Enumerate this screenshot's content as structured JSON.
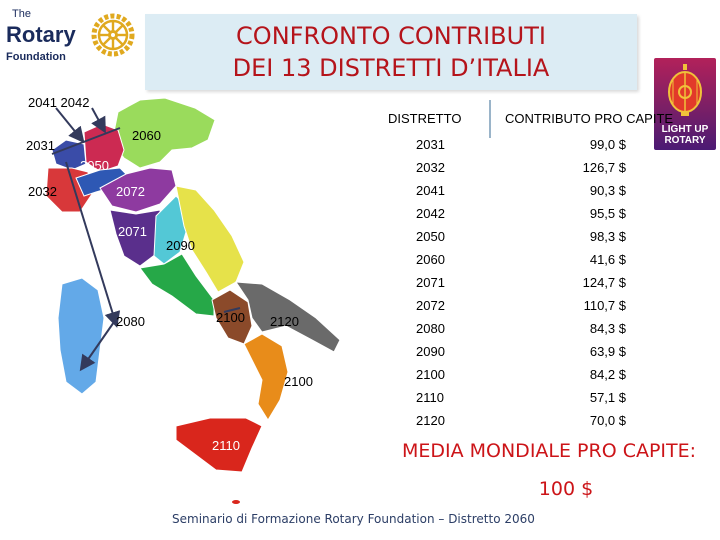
{
  "logo": {
    "the": "The",
    "rotary": "Rotary",
    "foundation": "Foundation"
  },
  "title": {
    "line1": "CONFRONTO CONTRIBUTI",
    "line2": "DEI 13 DISTRETTI D’ITALIA"
  },
  "light_up": {
    "line1": "LIGHT UP",
    "line2": "ROTARY"
  },
  "map": {
    "labels": {
      "d2041_2042": "2041  2042",
      "d2031": "2031",
      "d2060": "2060",
      "d2050": "2050",
      "d2032": "2032",
      "d2072": "2072",
      "d2071": "2071",
      "d2090": "2090",
      "d2080": "2080",
      "d2100a": "2100",
      "d2120": "2120",
      "d2100b": "2100",
      "d2110": "2110"
    },
    "colors": {
      "piemonte": "#d8383a",
      "valle": "#3a4ca8",
      "lombardia": "#cc2a52",
      "nordest": "#9adb5c",
      "emilia": "#8e3aa0",
      "liguria": "#2e58b4",
      "toscana": "#5a2f8c",
      "umbria": "#53c8d6",
      "marche": "#e6e24a",
      "lazio": "#26a848",
      "campania": "#8b4a2a",
      "puglia": "#6a6a6a",
      "calabria": "#e88c1a",
      "sicilia": "#d9261c",
      "sardegna": "#63a9e8"
    }
  },
  "table": {
    "header_district": "DISTRETTO",
    "header_contribution": "CONTRIBUTO PRO CAPITE",
    "rows": [
      {
        "district": "2031",
        "value": "99,0 $"
      },
      {
        "district": "2032",
        "value": "126,7 $"
      },
      {
        "district": "2041",
        "value": "90,3 $"
      },
      {
        "district": "2042",
        "value": "95,5 $"
      },
      {
        "district": "2050",
        "value": "98,3 $"
      },
      {
        "district": "2060",
        "value": "41,6 $"
      },
      {
        "district": "2071",
        "value": "124,7 $"
      },
      {
        "district": "2072",
        "value": "110,7 $"
      },
      {
        "district": "2080",
        "value": "84,3 $"
      },
      {
        "district": "2090",
        "value": "63,9 $"
      },
      {
        "district": "2100",
        "value": "84,2 $"
      },
      {
        "district": "2110",
        "value": "57,1 $"
      },
      {
        "district": "2120",
        "value": "70,0 $"
      }
    ]
  },
  "media": {
    "label": "MEDIA MONDIALE PRO CAPITE:",
    "value": "100 $"
  },
  "footer": "Seminario di Formazione Rotary Foundation – Distretto 2060"
}
